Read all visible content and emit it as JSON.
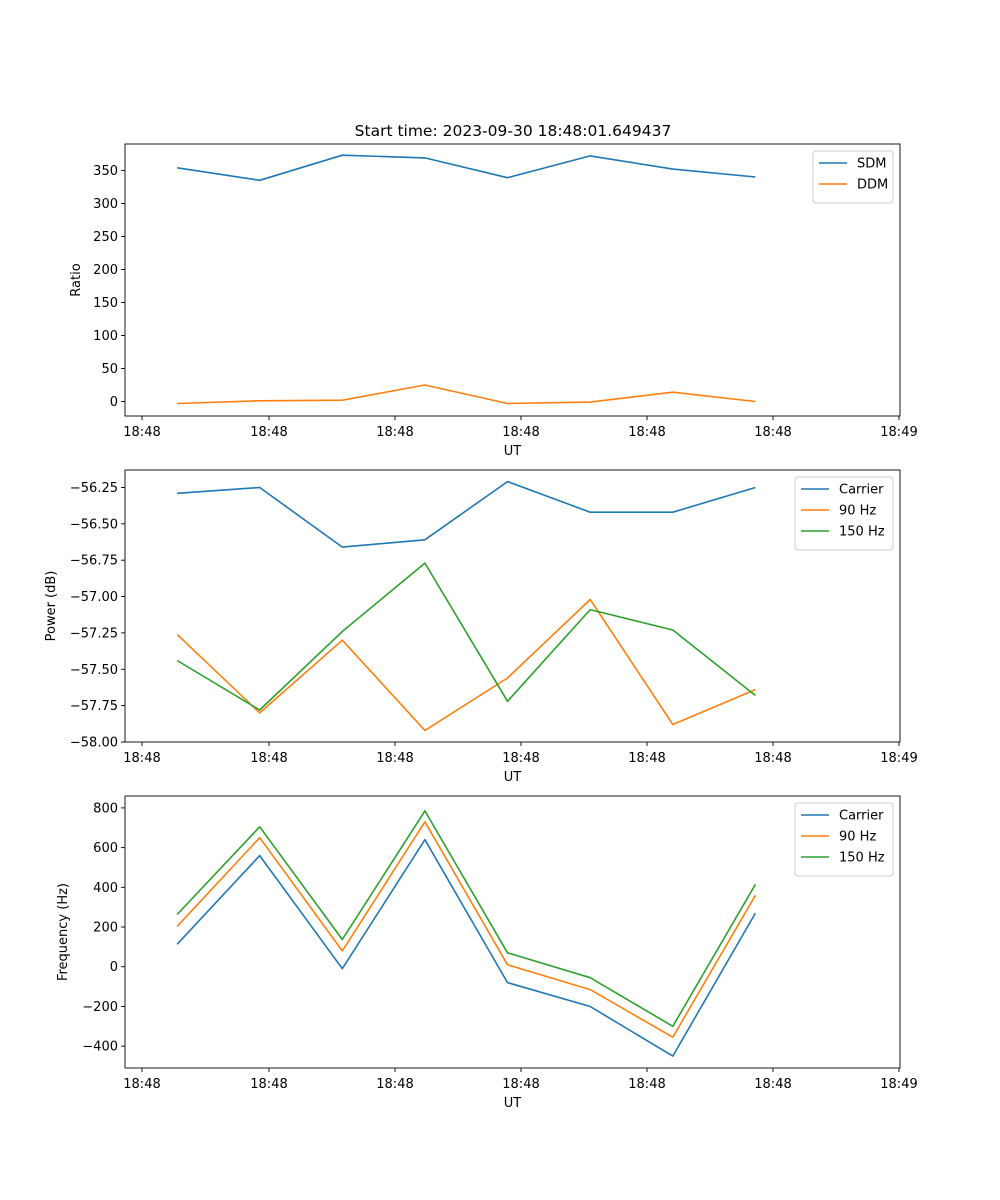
{
  "title": "Start time: 2023-09-30 18:48:01.649437",
  "colors": {
    "series1": "#1f77b4",
    "series2": "#ff7f0e",
    "series3": "#2ca02c"
  },
  "chart_data": [
    {
      "type": "line",
      "title": "Start time: 2023-09-30 18:48:01.649437",
      "xlabel": "UT",
      "ylabel": "Ratio",
      "x_ticks": [
        "18:48",
        "18:48",
        "18:48",
        "18:48",
        "18:48",
        "18:48",
        "18:48"
      ],
      "x_tick_last": "18:49",
      "xlim": [
        -0.63,
        8.75
      ],
      "x": [
        0,
        1,
        2,
        3,
        4,
        5,
        6,
        7
      ],
      "ylim": [
        -22,
        390
      ],
      "y_ticks": [
        0,
        50,
        100,
        150,
        200,
        250,
        300,
        350
      ],
      "y_tick_labels": [
        "0",
        "50",
        "100",
        "150",
        "200",
        "250",
        "300",
        "350"
      ],
      "legend": "top-right",
      "series": [
        {
          "name": "SDM",
          "color": "#1f77b4",
          "values": [
            354,
            335,
            373,
            369,
            339,
            372,
            352,
            340
          ]
        },
        {
          "name": "DDM",
          "color": "#ff7f0e",
          "values": [
            -3,
            1,
            2,
            25,
            -3,
            -1,
            14,
            0
          ]
        }
      ]
    },
    {
      "type": "line",
      "xlabel": "UT",
      "ylabel": "Power (dB)",
      "x_ticks": [
        "18:48",
        "18:48",
        "18:48",
        "18:48",
        "18:48",
        "18:48",
        "18:48"
      ],
      "x_tick_last": "18:49",
      "xlim": [
        -0.63,
        8.75
      ],
      "x": [
        0,
        1,
        2,
        3,
        4,
        5,
        6,
        7
      ],
      "ylim": [
        -58.0,
        -56.13
      ],
      "y_ticks": [
        -58.0,
        -57.75,
        -57.5,
        -57.25,
        -57.0,
        -56.75,
        -56.5,
        -56.25
      ],
      "y_tick_labels": [
        "−58.00",
        "−57.75",
        "−57.50",
        "−57.25",
        "−57.00",
        "−56.75",
        "−56.50",
        "−56.25"
      ],
      "legend": "top-right",
      "series": [
        {
          "name": "Carrier",
          "color": "#1f77b4",
          "values": [
            -56.29,
            -56.25,
            -56.66,
            -56.61,
            -56.21,
            -56.42,
            -56.42,
            -56.25
          ]
        },
        {
          "name": "90 Hz",
          "color": "#ff7f0e",
          "values": [
            -57.26,
            -57.8,
            -57.3,
            -57.92,
            -57.56,
            -57.02,
            -57.88,
            -57.64
          ]
        },
        {
          "name": "150 Hz",
          "color": "#2ca02c",
          "values": [
            -57.44,
            -57.78,
            -57.24,
            -56.77,
            -57.72,
            -57.09,
            -57.23,
            -57.68
          ]
        }
      ]
    },
    {
      "type": "line",
      "xlabel": "UT",
      "ylabel": "Frequency (Hz)",
      "x_ticks": [
        "18:48",
        "18:48",
        "18:48",
        "18:48",
        "18:48",
        "18:48",
        "18:48"
      ],
      "x_tick_last": "18:49",
      "xlim": [
        -0.63,
        8.75
      ],
      "x": [
        0,
        1,
        2,
        3,
        4,
        5,
        6,
        7
      ],
      "ylim": [
        -510,
        860
      ],
      "y_ticks": [
        -400,
        -200,
        0,
        200,
        400,
        600,
        800
      ],
      "y_tick_labels": [
        "−400",
        "−200",
        "0",
        "200",
        "400",
        "600",
        "800"
      ],
      "legend": "top-right",
      "series": [
        {
          "name": "Carrier",
          "color": "#1f77b4",
          "values": [
            113,
            560,
            -10,
            640,
            -80,
            -200,
            -450,
            270
          ]
        },
        {
          "name": "90 Hz",
          "color": "#ff7f0e",
          "values": [
            203,
            650,
            80,
            730,
            10,
            -115,
            -355,
            360
          ]
        },
        {
          "name": "150 Hz",
          "color": "#2ca02c",
          "values": [
            263,
            705,
            137,
            785,
            70,
            -55,
            -300,
            415
          ]
        }
      ]
    }
  ]
}
